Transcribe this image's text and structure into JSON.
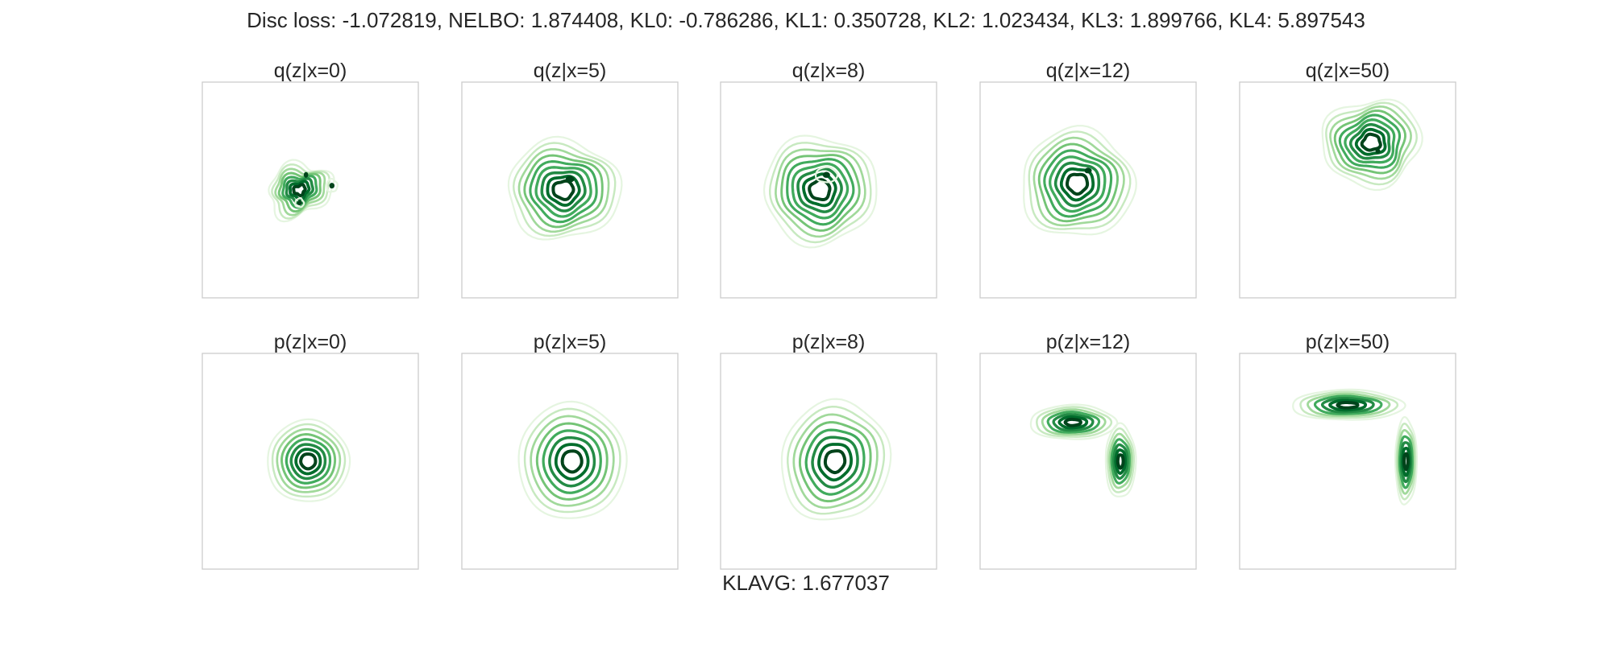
{
  "figure": {
    "suptitle": "Disc loss: -1.072819, NELBO: 1.874408, KL0: -0.786286, KL1: 0.350728, KL2: 1.023434, KL3: 1.899766, KL4: 5.897543",
    "footer": "KLAVG: 1.677037"
  },
  "chart_data": {
    "type": "contour",
    "colormap": "Greens",
    "grid": false,
    "row_labels": [
      "q",
      "p"
    ],
    "panels": [
      {
        "row": "q",
        "title": "q(z|x=0)",
        "blobs": [
          {
            "cx": 0.45,
            "cy": 0.5,
            "sx": 0.15,
            "sy": 0.12,
            "rot": -20,
            "wob": 0.24,
            "ph": 0.6,
            "levels": 8
          },
          {
            "cx": 0.45,
            "cy": 0.56,
            "sx": 0.02,
            "sy": 0.02,
            "rot": 0,
            "wob": 0.1,
            "ph": 0,
            "levels": 2
          },
          {
            "cx": 0.6,
            "cy": 0.48,
            "sx": 0.025,
            "sy": 0.03,
            "rot": 0,
            "wob": 0.1,
            "ph": 1,
            "levels": 2
          },
          {
            "cx": 0.48,
            "cy": 0.43,
            "sx": 0.015,
            "sy": 0.03,
            "rot": 0,
            "wob": 0.05,
            "ph": 2,
            "levels": 1
          }
        ]
      },
      {
        "row": "q",
        "title": "q(z|x=5)",
        "blobs": [
          {
            "cx": 0.47,
            "cy": 0.5,
            "sx": 0.26,
            "sy": 0.23,
            "rot": 0,
            "wob": 0.1,
            "ph": 1.2,
            "levels": 9
          },
          {
            "cx": 0.5,
            "cy": 0.45,
            "sx": 0.07,
            "sy": 0.04,
            "rot": 0,
            "wob": 0.15,
            "ph": 0,
            "levels": 1
          }
        ]
      },
      {
        "row": "q",
        "title": "q(z|x=8)",
        "blobs": [
          {
            "cx": 0.46,
            "cy": 0.5,
            "sx": 0.26,
            "sy": 0.25,
            "rot": 0,
            "wob": 0.09,
            "ph": 2.1,
            "levels": 9
          },
          {
            "cx": 0.49,
            "cy": 0.43,
            "sx": 0.05,
            "sy": 0.035,
            "rot": 0,
            "wob": 0.05,
            "ph": 0,
            "levels": 2
          }
        ]
      },
      {
        "row": "q",
        "title": "q(z|x=12)",
        "blobs": [
          {
            "cx": 0.45,
            "cy": 0.47,
            "sx": 0.26,
            "sy": 0.25,
            "rot": 0,
            "wob": 0.09,
            "ph": 0.4,
            "levels": 9
          },
          {
            "cx": 0.5,
            "cy": 0.41,
            "sx": 0.05,
            "sy": 0.03,
            "rot": 0,
            "wob": 0.1,
            "ph": 1,
            "levels": 1
          }
        ]
      },
      {
        "row": "q",
        "title": "q(z|x=50)",
        "blobs": [
          {
            "cx": 0.61,
            "cy": 0.28,
            "sx": 0.23,
            "sy": 0.2,
            "rot": -10,
            "wob": 0.12,
            "ph": 3.0,
            "levels": 9
          },
          {
            "cx": 0.64,
            "cy": 0.32,
            "sx": 0.02,
            "sy": 0.02,
            "rot": 0,
            "wob": 0.05,
            "ph": 0,
            "levels": 1
          }
        ]
      },
      {
        "row": "p",
        "title": "p(z|x=0)",
        "blobs": [
          {
            "cx": 0.49,
            "cy": 0.5,
            "sx": 0.19,
            "sy": 0.19,
            "rot": 0,
            "wob": 0.03,
            "ph": 0.5,
            "levels": 8
          }
        ]
      },
      {
        "row": "p",
        "title": "p(z|x=5)",
        "blobs": [
          {
            "cx": 0.51,
            "cy": 0.5,
            "sx": 0.25,
            "sy": 0.27,
            "rot": 0,
            "wob": 0.03,
            "ph": 0.9,
            "levels": 8
          }
        ]
      },
      {
        "row": "p",
        "title": "p(z|x=8)",
        "blobs": [
          {
            "cx": 0.53,
            "cy": 0.5,
            "sx": 0.25,
            "sy": 0.28,
            "rot": 15,
            "wob": 0.05,
            "ph": 1.7,
            "levels": 8
          }
        ]
      },
      {
        "row": "p",
        "title": "p(z|x=12)",
        "blobs": [
          {
            "cx": 0.43,
            "cy": 0.32,
            "sx": 0.2,
            "sy": 0.08,
            "rot": 0,
            "wob": 0.05,
            "ph": 0.2,
            "levels": 7
          },
          {
            "cx": 0.65,
            "cy": 0.5,
            "sx": 0.07,
            "sy": 0.17,
            "rot": 0,
            "wob": 0.05,
            "ph": 0.8,
            "levels": 7
          }
        ]
      },
      {
        "row": "p",
        "title": "p(z|x=50)",
        "blobs": [
          {
            "cx": 0.5,
            "cy": 0.24,
            "sx": 0.26,
            "sy": 0.07,
            "rot": 0,
            "wob": 0.05,
            "ph": 0.3,
            "levels": 7
          },
          {
            "cx": 0.77,
            "cy": 0.5,
            "sx": 0.05,
            "sy": 0.2,
            "rot": 0,
            "wob": 0.05,
            "ph": 1.5,
            "levels": 7
          }
        ]
      }
    ]
  }
}
